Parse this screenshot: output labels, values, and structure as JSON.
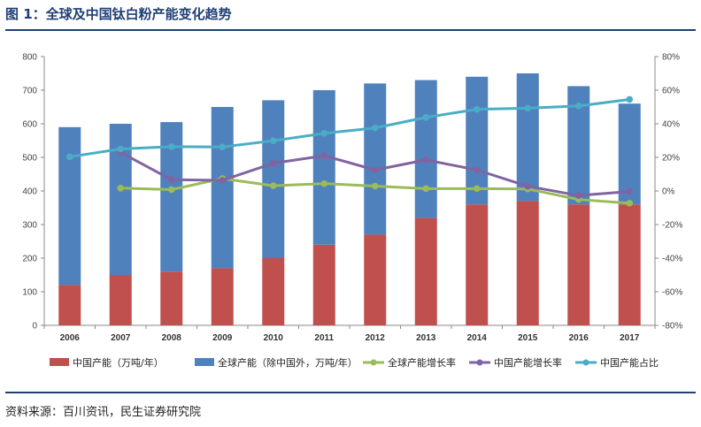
{
  "header": {
    "title": "图 1：全球及中国钛白粉产能变化趋势"
  },
  "footer": {
    "source": "资料来源：百川资讯，民生证券研究院"
  },
  "chart_data": {
    "type": "bar",
    "title": "",
    "categories": [
      "2006",
      "2007",
      "2008",
      "2009",
      "2010",
      "2011",
      "2012",
      "2013",
      "2014",
      "2015",
      "2016",
      "2017"
    ],
    "y_left": {
      "range": [
        0,
        800
      ],
      "ticks": [
        "0",
        "100",
        "200",
        "300",
        "400",
        "500",
        "600",
        "700",
        "800"
      ]
    },
    "y_right": {
      "range": [
        -80,
        80
      ],
      "ticks": [
        "-80%",
        "-60%",
        "-40%",
        "-20%",
        "0%",
        "20%",
        "40%",
        "60%",
        "80%"
      ]
    },
    "colors": {
      "china": "#c0504d",
      "global": "#4f81bd",
      "global_growth": "#9bbb59",
      "china_growth": "#8064a2",
      "china_share": "#4bacc6"
    },
    "series": [
      {
        "name": "中国产能（万吨/年）",
        "type": "stacked-bar",
        "axis": "left",
        "values": [
          120,
          150,
          160,
          170,
          200,
          240,
          270,
          320,
          360,
          370,
          360,
          360
        ]
      },
      {
        "name": "全球产能（除中国外，万吨/年）",
        "type": "stacked-bar",
        "axis": "left",
        "values": [
          470,
          450,
          445,
          480,
          470,
          460,
          450,
          410,
          380,
          380,
          352,
          300
        ]
      },
      {
        "name": "全球产能增长率",
        "type": "line",
        "axis": "right",
        "values": [
          null,
          1.7,
          0.8,
          7.4,
          3.1,
          4.4,
          2.9,
          1.4,
          1.4,
          1.2,
          -5.1,
          -7.3
        ]
      },
      {
        "name": "中国产能增长率",
        "type": "line",
        "axis": "right",
        "values": [
          null,
          23,
          6.7,
          6.3,
          16.5,
          21,
          12.5,
          18.5,
          12.5,
          2.8,
          -2.7,
          -0.3
        ]
      },
      {
        "name": "中国产能占比",
        "type": "line",
        "axis": "right",
        "values": [
          20.3,
          25,
          26.4,
          26.2,
          29.9,
          34.3,
          37.5,
          43.8,
          48.6,
          49.3,
          50.6,
          54.5
        ]
      }
    ],
    "legend_position": "bottom",
    "grid": false
  }
}
